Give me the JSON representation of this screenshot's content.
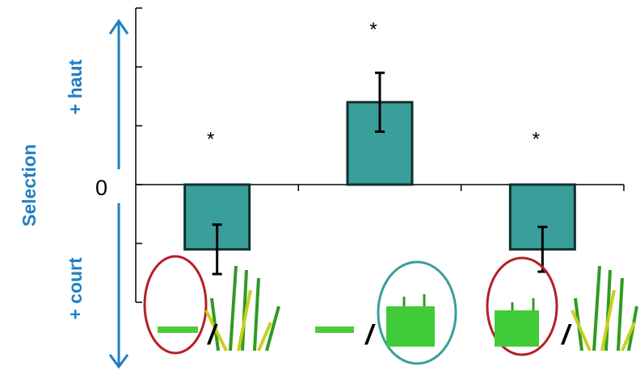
{
  "chart_data": {
    "type": "bar",
    "ylabel": "Selection",
    "y_up_label": "+ haut",
    "y_down_label": "+ court",
    "categories": [
      null,
      null,
      null
    ],
    "values": [
      -1.1,
      1.4,
      -1.1
    ],
    "errors": [
      0.42,
      0.5,
      0.38
    ],
    "annotations": [
      "*",
      "*",
      "*"
    ],
    "separators": [
      "/",
      "/",
      "/"
    ],
    "color": "#3a9e9a",
    "edge_color": "#0f2f2e",
    "label_color": "#1f7fc4",
    "ylim": [
      -2,
      3
    ],
    "yticks": [
      {
        "value": -2,
        "label": null
      },
      {
        "value": -1,
        "label": null
      },
      0,
      {
        "value": 1,
        "label": null
      },
      {
        "value": 2,
        "label": null
      },
      {
        "value": 3,
        "label": null
      }
    ]
  }
}
